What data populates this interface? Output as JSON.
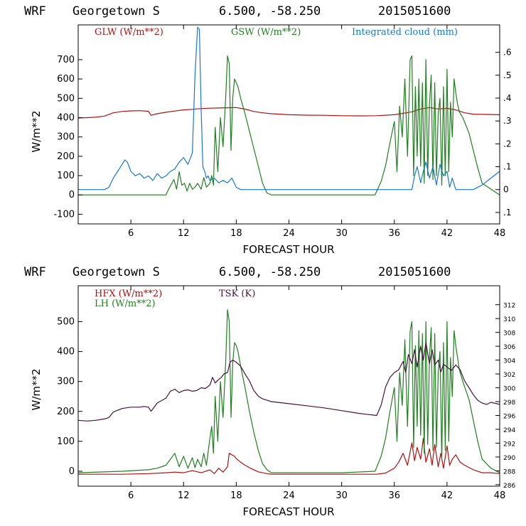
{
  "panels": [
    {
      "title": {
        "model": "WRF",
        "location": "Georgetown S",
        "coords": "6.500, -58.250",
        "date": "2015051600"
      },
      "chart_data": {
        "type": "line",
        "xlabel": "FORECAST HOUR",
        "ylabel": "W/m**2",
        "xlim": [
          0,
          48
        ],
        "ylim": [
          -150,
          880
        ],
        "y2lim": [
          -0.15,
          0.72
        ],
        "xticks": [
          6,
          12,
          18,
          24,
          30,
          36,
          42,
          48
        ],
        "yticks": [
          -100,
          0,
          100,
          200,
          300,
          400,
          500,
          600,
          700
        ],
        "y2ticks": [
          -0.1,
          0,
          0.1,
          0.2,
          0.3,
          0.4,
          0.5,
          0.6
        ],
        "y2ticklabels": [
          ".1",
          "0",
          ".1",
          ".2",
          ".3",
          ".4",
          ".5",
          ".6"
        ],
        "series": [
          {
            "name": "GLW (W/m**2)",
            "color": "#b01010",
            "axis": "left",
            "x": [
              0,
              1,
              2,
              3,
              4,
              5,
              6,
              7,
              8,
              8.3,
              9,
              10,
              11,
              12,
              13,
              14,
              15,
              16,
              17,
              18,
              19,
              20,
              21,
              22,
              23,
              24,
              26,
              28,
              30,
              32,
              34,
              36,
              38,
              39,
              40,
              41,
              42,
              43,
              44,
              45,
              46,
              47,
              48
            ],
            "y": [
              398,
              400,
              402,
              408,
              425,
              432,
              435,
              436,
              433,
              412,
              420,
              428,
              434,
              440,
              443,
              447,
              449,
              450,
              451,
              452,
              444,
              432,
              425,
              420,
              418,
              415,
              413,
              412,
              410,
              409,
              410,
              415,
              430,
              445,
              452,
              445,
              448,
              440,
              425,
              418,
              417,
              416,
              415
            ]
          },
          {
            "name": "GSW (W/m**2)",
            "color": "#208020",
            "axis": "left",
            "x": [
              0,
              10,
              10.3,
              10.6,
              10.9,
              11.2,
              11.5,
              11.8,
              12.1,
              12.4,
              12.7,
              13,
              13.3,
              13.6,
              14,
              14.3,
              14.6,
              15,
              15.2,
              15.4,
              15.6,
              15.9,
              16.2,
              16.5,
              16.8,
              17,
              17.2,
              17.4,
              17.6,
              17.8,
              18,
              18.2,
              18.5,
              19,
              19.5,
              20,
              20.5,
              21,
              21.5,
              22,
              30,
              33.8,
              34.5,
              35,
              35.5,
              36,
              36.3,
              36.6,
              36.9,
              37.2,
              37.5,
              37.8,
              38,
              38.2,
              38.4,
              38.6,
              38.8,
              39,
              39.2,
              39.4,
              39.6,
              39.8,
              40,
              40.2,
              40.4,
              40.6,
              40.8,
              41,
              41.2,
              41.4,
              41.6,
              41.8,
              42,
              42.2,
              42.4,
              42.6,
              42.8,
              43,
              43.2,
              43.4,
              43.8,
              44.5,
              45,
              45.5,
              46,
              48
            ],
            "y": [
              0,
              0,
              30,
              55,
              80,
              30,
              120,
              50,
              60,
              20,
              60,
              30,
              40,
              60,
              30,
              90,
              40,
              60,
              100,
              50,
              350,
              120,
              400,
              250,
              510,
              720,
              680,
              230,
              500,
              600,
              580,
              560,
              500,
              420,
              330,
              240,
              150,
              60,
              10,
              0,
              0,
              0,
              70,
              150,
              270,
              380,
              120,
              460,
              300,
              600,
              200,
              700,
              720,
              100,
              560,
              200,
              600,
              150,
              580,
              60,
              700,
              100,
              470,
              620,
              80,
              580,
              100,
              420,
              500,
              50,
              560,
              100,
              650,
              120,
              480,
              300,
              600,
              530,
              470,
              430,
              400,
              320,
              230,
              140,
              60,
              0
            ]
          },
          {
            "name": "Integrated cloud (mm)",
            "color": "#1878d0",
            "axis": "right",
            "x": [
              0,
              3,
              3.5,
              4,
              4.5,
              5,
              5.3,
              5.6,
              6,
              6.5,
              7,
              7.5,
              8,
              8.5,
              9,
              9.5,
              10,
              10.5,
              11,
              11.5,
              12,
              12.5,
              13,
              13.3,
              13.6,
              13.8,
              14,
              14.2,
              14.4,
              14.6,
              14.8,
              15,
              15.5,
              16,
              16.5,
              17,
              17.5,
              18,
              18.5,
              19,
              30,
              38,
              38.3,
              38.6,
              39,
              39.3,
              39.6,
              40,
              40.4,
              40.8,
              41.2,
              41.6,
              42,
              42.3,
              42.6,
              43,
              43.2,
              43.6,
              44,
              45,
              46,
              47,
              48
            ],
            "y": [
              0,
              0,
              0.01,
              0.05,
              0.08,
              0.11,
              0.13,
              0.12,
              0.08,
              0.06,
              0.07,
              0.05,
              0.06,
              0.04,
              0.07,
              0.05,
              0.06,
              0.08,
              0.09,
              0.12,
              0.14,
              0.11,
              0.16,
              0.5,
              0.71,
              0.7,
              0.35,
              0.1,
              0.08,
              0.05,
              0.06,
              0.04,
              0.05,
              0.03,
              0.04,
              0.03,
              0.05,
              0.01,
              0,
              0,
              0,
              0,
              0.06,
              0.1,
              0.03,
              0.08,
              0.12,
              0.05,
              0.1,
              0.02,
              0.11,
              0.06,
              0.08,
              0.01,
              0.05,
              0,
              0,
              0,
              0,
              0,
              0.02,
              0.05,
              0.08
            ]
          }
        ]
      }
    },
    {
      "title": {
        "model": "WRF",
        "location": "Georgetown S",
        "coords": "6.500, -58.250",
        "date": "2015051600"
      },
      "chart_data": {
        "type": "line",
        "xlabel": "FORECAST HOUR",
        "ylabel": "W/m**2",
        "xlim": [
          0,
          48
        ],
        "ylim": [
          -50,
          620
        ],
        "y2lim": [
          285.78,
          314.74
        ],
        "xticks": [
          6,
          12,
          18,
          24,
          30,
          36,
          42,
          48
        ],
        "yticks": [
          0,
          100,
          200,
          300,
          400,
          500
        ],
        "y2ticks": [
          286,
          288,
          290,
          292,
          294,
          296,
          298,
          300,
          302,
          304,
          306,
          308,
          310,
          312
        ],
        "series": [
          {
            "name": "HFX (W/m**2)",
            "color": "#b01010",
            "axis": "left",
            "x": [
              0,
              5,
              8,
              10,
              11,
              12,
              13,
              14,
              15,
              15.5,
              16,
              16.5,
              17,
              17.2,
              17.5,
              17.8,
              18,
              18.5,
              19,
              19.5,
              20,
              20.5,
              21,
              21.5,
              22,
              30,
              34,
              35,
              36,
              36.5,
              37,
              37.5,
              38,
              38.3,
              38.6,
              39,
              39.3,
              39.6,
              40,
              40.3,
              40.6,
              41,
              41.3,
              41.6,
              42,
              42.3,
              42.6,
              43,
              43.5,
              44,
              45,
              46,
              47,
              48
            ],
            "y": [
              -10,
              -10,
              -8,
              -5,
              -3,
              -5,
              2,
              -5,
              5,
              -8,
              10,
              -3,
              15,
              60,
              55,
              50,
              42,
              30,
              20,
              12,
              5,
              -2,
              -5,
              -8,
              -10,
              -10,
              -10,
              -6,
              10,
              30,
              60,
              20,
              95,
              35,
              80,
              40,
              110,
              30,
              75,
              20,
              90,
              15,
              60,
              10,
              85,
              20,
              40,
              55,
              30,
              20,
              5,
              -5,
              -5,
              -8
            ]
          },
          {
            "name": "LH (W/m**2)",
            "color": "#208020",
            "axis": "left",
            "x": [
              0,
              5,
              8,
              9,
              10,
              10.5,
              11,
              11.5,
              12,
              12.5,
              13,
              13.3,
              13.6,
              14,
              14.3,
              14.6,
              15,
              15.2,
              15.4,
              15.6,
              15.9,
              16.2,
              16.5,
              16.8,
              17,
              17.2,
              17.4,
              17.6,
              17.8,
              18,
              18.2,
              18.5,
              19,
              19.5,
              20,
              20.5,
              21,
              21.5,
              22,
              30,
              33.8,
              34.5,
              35,
              35.5,
              36,
              36.3,
              36.6,
              36.9,
              37.2,
              37.5,
              37.8,
              38,
              38.2,
              38.4,
              38.6,
              38.8,
              39,
              39.2,
              39.4,
              39.6,
              39.8,
              40,
              40.2,
              40.4,
              40.6,
              40.8,
              41,
              41.2,
              41.4,
              41.6,
              41.8,
              42,
              42.2,
              42.4,
              42.6,
              42.8,
              43,
              43.2,
              43.4,
              43.8,
              44.5,
              45,
              45.5,
              46,
              47,
              48
            ],
            "y": [
              -5,
              0,
              5,
              10,
              20,
              40,
              60,
              15,
              50,
              10,
              45,
              12,
              40,
              15,
              60,
              20,
              110,
              150,
              60,
              250,
              100,
              300,
              180,
              370,
              540,
              500,
              180,
              360,
              430,
              420,
              400,
              350,
              280,
              200,
              130,
              70,
              25,
              5,
              -5,
              -5,
              0,
              50,
              110,
              200,
              280,
              100,
              330,
              220,
              440,
              150,
              470,
              500,
              80,
              420,
              150,
              470,
              120,
              460,
              60,
              500,
              90,
              380,
              480,
              70,
              460,
              80,
              330,
              400,
              40,
              430,
              70,
              500,
              100,
              380,
              250,
              470,
              420,
              380,
              340,
              300,
              240,
              170,
              100,
              40,
              10,
              -5
            ]
          },
          {
            "name": "TSK (K)",
            "color": "#4a1040",
            "axis": "right",
            "x": [
              0,
              1,
              2,
              3,
              3.5,
              4,
              5,
              6,
              7,
              7.5,
              8,
              8.3,
              9,
              10,
              10.5,
              11,
              11.5,
              12,
              12.5,
              13,
              13.5,
              14,
              14.5,
              15,
              15.3,
              15.6,
              16,
              16.3,
              16.6,
              17,
              17.3,
              17.6,
              18,
              18.5,
              19,
              19.5,
              20,
              20.5,
              21,
              21.5,
              22,
              24,
              26,
              28,
              30,
              32,
              34,
              34.5,
              35,
              35.5,
              36,
              36.5,
              37,
              37.3,
              37.6,
              38,
              38.3,
              38.6,
              39,
              39.3,
              39.6,
              40,
              40.3,
              40.6,
              41,
              41.3,
              41.6,
              42,
              42.5,
              43,
              43.5,
              44,
              44.5,
              45,
              45.5,
              46,
              46.5,
              47,
              48
            ],
            "y": [
              295.3,
              295.2,
              295.3,
              295.5,
              295.7,
              296.5,
              297.0,
              297.2,
              297.2,
              297.3,
              297.2,
              296.6,
              297.8,
              298.5,
              299.5,
              299.8,
              299.3,
              299.6,
              299.7,
              299.5,
              299.6,
              300.0,
              299.9,
              300.4,
              301.5,
              300.7,
              301.2,
              301.5,
              302.0,
              302.2,
              303.7,
              304.0,
              303.7,
              303.1,
              302.0,
              301.0,
              299.6,
              298.8,
              298.4,
              298.2,
              298.0,
              297.7,
              297.4,
              297.1,
              296.7,
              296.3,
              296.0,
              297.5,
              300.1,
              301.5,
              302.2,
              302.6,
              303.8,
              302.2,
              304.8,
              303.5,
              305.5,
              303.0,
              306.0,
              304.0,
              306.5,
              303.5,
              305.5,
              303.3,
              304.0,
              302.3,
              303.4,
              303.0,
              302.5,
              303.3,
              302.6,
              301.0,
              300.0,
              299.0,
              298.2,
              297.8,
              297.6,
              297.9,
              297.6
            ]
          }
        ]
      }
    }
  ]
}
